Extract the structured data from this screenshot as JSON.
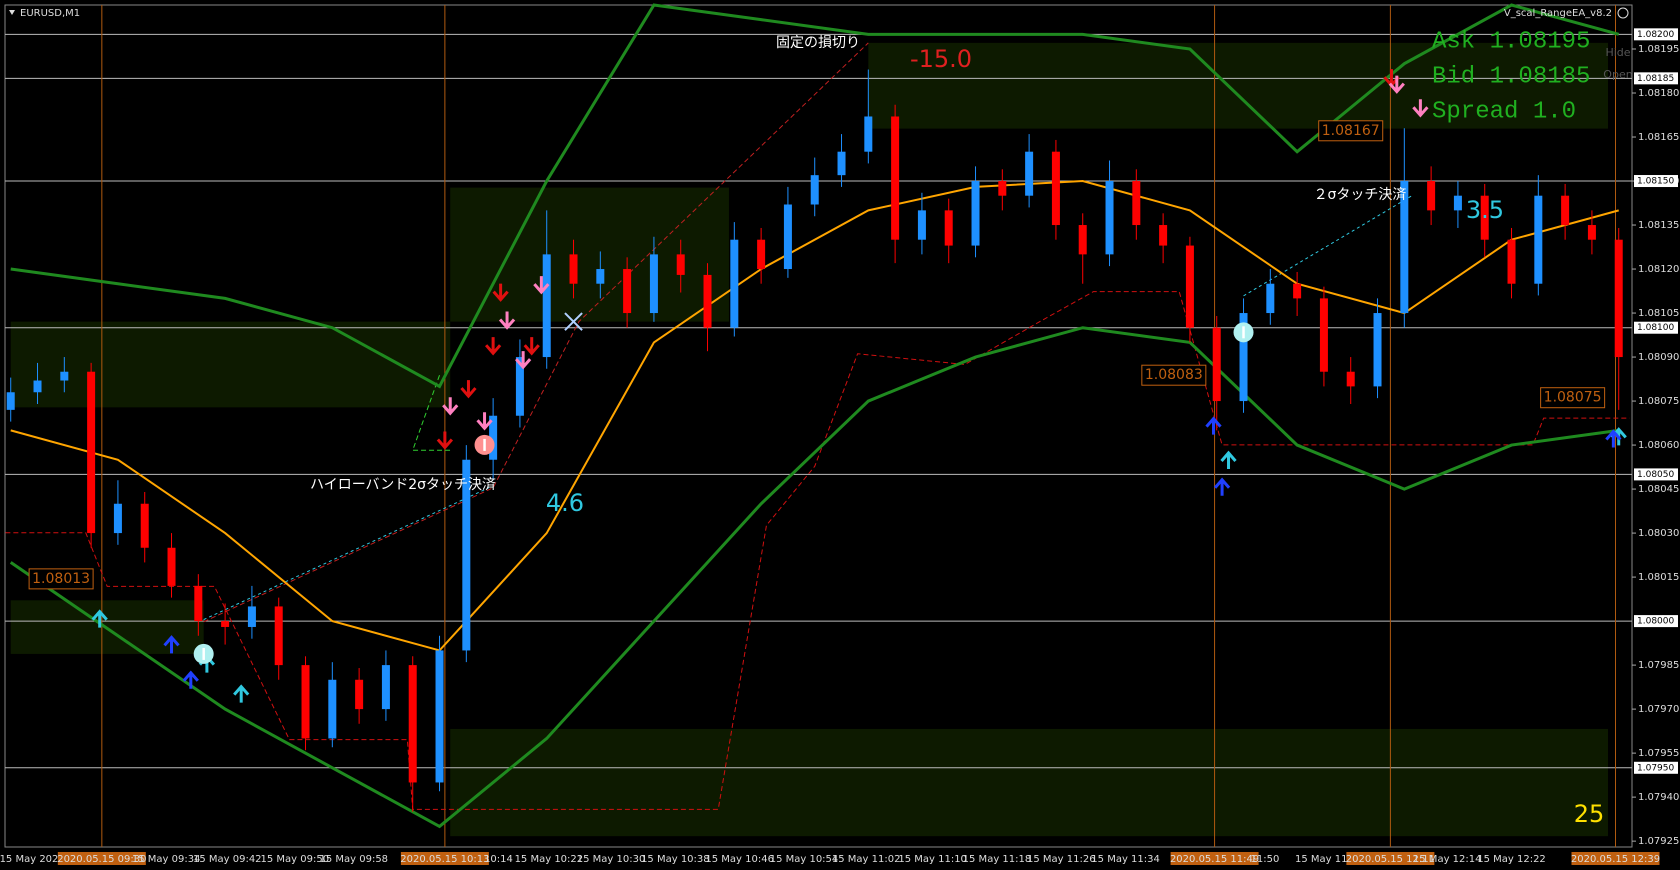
{
  "chart_data": {
    "type": "candlestick",
    "symbol": "EURUSD,M1",
    "expert": "V_scal_RangeEA_v8.2",
    "up_color": "#1e90ff",
    "down_color": "#ff0000",
    "ylim": [
      1.07923,
      1.0821
    ],
    "yticks": [
      1.08195,
      {
        "value": 1.0818,
        "label": "1.08180"
      },
      1.08165,
      {
        "value": 1.0815,
        "label": "1.08150"
      },
      1.08135,
      {
        "value": 1.0812,
        "label": "1.08120"
      },
      1.08105,
      {
        "value": 1.0809,
        "label": "1.08090"
      },
      1.08075,
      {
        "value": 1.0806,
        "label": "1.08060"
      },
      1.08045,
      {
        "value": 1.0803,
        "label": "1.08030"
      },
      1.08015,
      1.07985,
      {
        "value": 1.0797,
        "label": "1.07970"
      },
      1.07955,
      {
        "value": 1.0794,
        "label": "1.07940"
      },
      1.07925
    ],
    "hlines": [
      {
        "value": 1.082,
        "label": "1.08200"
      },
      1.08185,
      {
        "value": 1.0815,
        "label": "1.08150"
      },
      {
        "value": 1.081,
        "label": "1.08100"
      },
      {
        "value": 1.0805,
        "label": "1.08050"
      },
      {
        "value": 1.08,
        "label": "1.08000"
      },
      {
        "value": 1.0795,
        "label": "1.07950"
      }
    ],
    "time_labels": [
      "15 May 2020",
      "2020.05.15 09:30",
      "15 May 09:34",
      "15 May 09:42",
      "15 May 09:50",
      "15 May 09:58",
      "2020.05.15 10:13",
      "10:14",
      "15 May 10:22",
      "15 May 10:30",
      "15 May 10:38",
      "15 May 10:46",
      "15 May 10:54",
      "15 May 11:02",
      "15 May 11:10",
      "15 May 11:18",
      "15 May 11:26",
      "15 May 11:34",
      "2020.05.15 11:49",
      "11:50",
      "15 May 11:58",
      "2020.05.15 12:11",
      "15 May 12:14",
      "15 May 12:22",
      "2020.05.15 12:39"
    ],
    "open": [
      1.08072,
      1.08078,
      1.08082,
      1.08085,
      1.0803,
      1.0804,
      1.08025,
      1.08012,
      1.08,
      1.07998,
      1.08005,
      1.07985,
      1.0796,
      1.0798,
      1.0797,
      1.07985,
      1.07945,
      1.0799,
      1.08055,
      1.0807,
      1.0809,
      1.08125,
      1.08115,
      1.0812,
      1.08105,
      1.08125,
      1.08118,
      1.081,
      1.0813,
      1.0812,
      1.08142,
      1.08152,
      1.0816,
      1.08172,
      1.0813,
      1.0814,
      1.08128,
      1.0815,
      1.08145,
      1.0816,
      1.08135,
      1.08125,
      1.0815,
      1.08135,
      1.08128,
      1.081,
      1.08075,
      1.08105,
      1.08115,
      1.0811,
      1.08085,
      1.0808,
      1.08105,
      1.0815,
      1.0814,
      1.08145,
      1.0813,
      1.08115,
      1.08145,
      1.08135,
      1.0813
    ],
    "high": [
      1.08083,
      1.08088,
      1.0809,
      1.08088,
      1.08048,
      1.08044,
      1.0803,
      1.08016,
      1.08006,
      1.08012,
      1.08008,
      1.07988,
      1.07986,
      1.07984,
      1.0799,
      1.07988,
      1.07995,
      1.0806,
      1.08076,
      1.08096,
      1.0814,
      1.0813,
      1.08126,
      1.08124,
      1.08131,
      1.0813,
      1.08122,
      1.08136,
      1.08134,
      1.08148,
      1.08158,
      1.08166,
      1.08188,
      1.08176,
      1.08146,
      1.08144,
      1.08155,
      1.08154,
      1.08166,
      1.08164,
      1.08139,
      1.08157,
      1.08154,
      1.08139,
      1.08131,
      1.08104,
      1.0811,
      1.0812,
      1.08119,
      1.08114,
      1.0809,
      1.0811,
      1.08168,
      1.08155,
      1.0815,
      1.08149,
      1.08134,
      1.08152,
      1.08149,
      1.0814,
      1.08134
    ],
    "low": [
      1.08068,
      1.08074,
      1.08078,
      1.08025,
      1.08026,
      1.0802,
      1.08008,
      1.07995,
      1.07992,
      1.07994,
      1.0798,
      1.07956,
      1.07957,
      1.07965,
      1.07966,
      1.07935,
      1.07942,
      1.07986,
      1.08048,
      1.08066,
      1.08086,
      1.0811,
      1.0811,
      1.081,
      1.08102,
      1.08112,
      1.08092,
      1.08097,
      1.08115,
      1.08117,
      1.08138,
      1.08148,
      1.08156,
      1.08122,
      1.08125,
      1.08122,
      1.08124,
      1.0814,
      1.08141,
      1.0813,
      1.08115,
      1.08121,
      1.0813,
      1.08122,
      1.08095,
      1.08065,
      1.08071,
      1.08101,
      1.08104,
      1.0808,
      1.08074,
      1.08076,
      1.081,
      1.08135,
      1.08134,
      1.08124,
      1.0811,
      1.08111,
      1.0813,
      1.08125,
      1.08072
    ],
    "close": [
      1.08078,
      1.08082,
      1.08085,
      1.0803,
      1.0804,
      1.08025,
      1.08012,
      1.08,
      1.07998,
      1.08005,
      1.07985,
      1.0796,
      1.0798,
      1.0797,
      1.07985,
      1.07945,
      1.0799,
      1.08055,
      1.0807,
      1.0809,
      1.08125,
      1.08115,
      1.0812,
      1.08105,
      1.08125,
      1.08118,
      1.081,
      1.0813,
      1.0812,
      1.08142,
      1.08152,
      1.0816,
      1.08172,
      1.0813,
      1.0814,
      1.08128,
      1.0815,
      1.08145,
      1.0816,
      1.08135,
      1.08125,
      1.0815,
      1.08135,
      1.08128,
      1.081,
      1.08075,
      1.08105,
      1.08115,
      1.0811,
      1.08085,
      1.0808,
      1.08105,
      1.0815,
      1.0814,
      1.08145,
      1.0813,
      1.08115,
      1.08145,
      1.08135,
      1.0813,
      1.0809
    ],
    "lines": [
      {
        "color": "#ffa500",
        "x": [
          0,
          4,
          8,
          12,
          16,
          20,
          24,
          28,
          32,
          36,
          40,
          44,
          48,
          52,
          56,
          60
        ],
        "values": [
          1.08065,
          1.08055,
          1.0803,
          1.08,
          1.0799,
          1.0803,
          1.08095,
          1.0812,
          1.0814,
          1.08148,
          1.0815,
          1.0814,
          1.08115,
          1.08105,
          1.0813,
          1.0814
        ]
      },
      {
        "color": "#1f8a1f",
        "x": [
          0,
          4,
          8,
          12,
          16,
          20,
          24,
          28,
          32,
          36,
          40,
          44,
          48,
          52,
          56,
          60
        ],
        "values": [
          1.0812,
          1.08115,
          1.0811,
          1.081,
          1.0808,
          1.0815,
          1.0821,
          1.08205,
          1.082,
          1.082,
          1.082,
          1.08195,
          1.0816,
          1.0819,
          1.0821,
          1.082
        ]
      },
      {
        "color": "#1f8a1f",
        "x": [
          0,
          4,
          8,
          12,
          16,
          20,
          24,
          28,
          32,
          36,
          40,
          44,
          48,
          52,
          56,
          60
        ],
        "values": [
          1.0802,
          1.07995,
          1.0797,
          1.0795,
          1.0793,
          1.0796,
          1.08,
          1.0804,
          1.08075,
          1.0809,
          1.081,
          1.08095,
          1.0806,
          1.08045,
          1.0806,
          1.08065
        ]
      }
    ],
    "ask": "Ask 1.08195",
    "bid": "Bid 1.08185",
    "spread": "Spread 1.0",
    "hide": "Hide",
    "open_btn": "Open",
    "annotations": {
      "stop_loss": "固定の損切り",
      "loss": "-15.0",
      "band_close": "ハイローバンド2σタッチ決済",
      "profit_1": "4.6",
      "touch_close": "２σタッチ決済",
      "profit_2": "3.5",
      "counter": "25"
    },
    "price_boxes": [
      "1.08013",
      "1.08083",
      "1.08167",
      "1.08075"
    ]
  }
}
